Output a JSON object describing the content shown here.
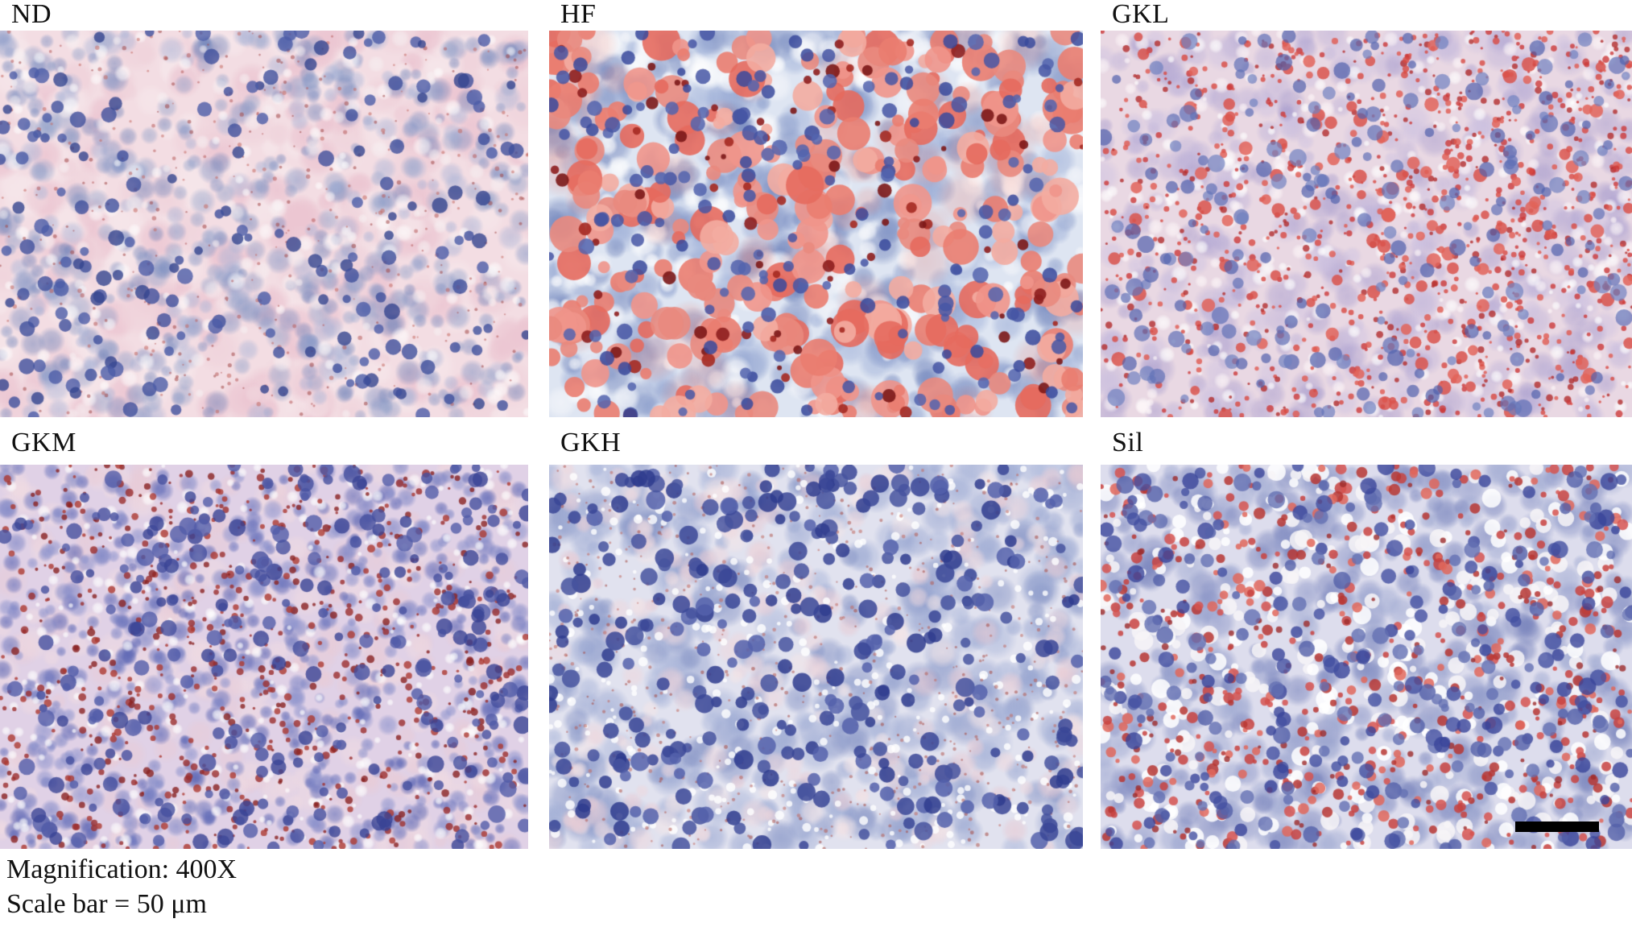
{
  "figure": {
    "caption": {
      "line1": "Magnification: 400X",
      "line2": "Scale bar = 50 μm"
    },
    "scale_bar": {
      "color": "#000000",
      "represents": "50 μm"
    },
    "stain_colors": {
      "lipid_red": "#d04a42",
      "nuclei_blue": "#42519e",
      "matrix_lavender": "#9aa6d0",
      "background_pink": "#eed7df"
    },
    "panels": [
      {
        "id": "nd",
        "label": "ND",
        "texture": {
          "bg": "#f3dde3",
          "layers": [
            {
              "kind": "pink-matrix",
              "colors": [
                "#f0d4dc",
                "#ecc6d2",
                "#f6e6ea"
              ],
              "rmin": 12,
              "rmax": 32,
              "count": 380,
              "alpha": 0.9,
              "soft": true
            },
            {
              "kind": "bluegray-cells",
              "colors": [
                "#8fa0c9",
                "#7b8ec1",
                "#a5b1d6",
                "#6d81b8"
              ],
              "rmin": 7,
              "rmax": 18,
              "count": 520,
              "alpha": 0.5,
              "soft": true
            },
            {
              "kind": "white-gaps",
              "colors": [
                "#ffffff",
                "#f7f1f3"
              ],
              "rmin": 5,
              "rmax": 13,
              "count": 180,
              "alpha": 0.65,
              "soft": true
            },
            {
              "kind": "red-specks",
              "colors": [
                "#b85c5c",
                "#a34848",
                "#c46a62"
              ],
              "rmin": 1,
              "rmax": 2.8,
              "count": 420,
              "alpha": 0.55,
              "soft": false
            },
            {
              "kind": "nuclei",
              "colors": [
                "#40509c",
                "#4c5ca8",
                "#35458f"
              ],
              "rmin": 5,
              "rmax": 10,
              "count": 185,
              "alpha": 0.8,
              "soft": false,
              "xbias": 1.15
            }
          ]
        }
      },
      {
        "id": "hf",
        "label": "HF",
        "texture": {
          "bg": "#dee5f2",
          "layers": [
            {
              "kind": "blue-matrix",
              "colors": [
                "#8b9dcb",
                "#9fb0d8",
                "#7487bd"
              ],
              "rmin": 10,
              "rmax": 28,
              "count": 400,
              "alpha": 0.6,
              "soft": true
            },
            {
              "kind": "white-vacuoles",
              "colors": [
                "#ffffff",
                "#f3f5fa"
              ],
              "rmin": 7,
              "rmax": 22,
              "count": 170,
              "alpha": 0.8,
              "soft": true
            },
            {
              "kind": "red-wash",
              "colors": [
                "#e87f73"
              ],
              "rmin": 18,
              "rmax": 36,
              "count": 60,
              "alpha": 0.25,
              "soft": true
            },
            {
              "kind": "salmon-droplets",
              "colors": [
                "#ef958b",
                "#ea7d70",
                "#f3aca1",
                "#e56a5e",
                "#e98a7e"
              ],
              "rmin": 7,
              "rmax": 24,
              "count": 300,
              "alpha": 0.9,
              "soft": false
            },
            {
              "kind": "dark-red-clumps",
              "colors": [
                "#8e1f1f",
                "#a52a22",
                "#7c1818"
              ],
              "rmin": 3,
              "rmax": 9,
              "count": 90,
              "alpha": 0.9,
              "soft": false
            },
            {
              "kind": "nuclei",
              "colors": [
                "#4656a4",
                "#3a4a9c",
                "#5464ae"
              ],
              "rmin": 5,
              "rmax": 10,
              "count": 170,
              "alpha": 0.85,
              "soft": false
            }
          ]
        }
      },
      {
        "id": "gkl",
        "label": "GKL",
        "texture": {
          "bg": "#e9d8e3",
          "layers": [
            {
              "kind": "lavender-matrix",
              "colors": [
                "#beb3d9",
                "#cdc2e1",
                "#aba0cf"
              ],
              "rmin": 9,
              "rmax": 24,
              "count": 400,
              "alpha": 0.55,
              "soft": true
            },
            {
              "kind": "white-gaps",
              "colors": [
                "#ffffff",
                "#fdf6f8"
              ],
              "rmin": 3,
              "rmax": 11,
              "count": 300,
              "alpha": 0.75,
              "soft": true
            },
            {
              "kind": "red-dots-small",
              "colors": [
                "#cc3a3a",
                "#d84a42",
                "#b32e2e",
                "#e05a50"
              ],
              "rmin": 1.5,
              "rmax": 4.5,
              "count": 950,
              "alpha": 0.8,
              "soft": false,
              "xbias": 0.8
            },
            {
              "kind": "red-droplets-med",
              "colors": [
                "#d9534c",
                "#e2645a"
              ],
              "rmin": 5,
              "rmax": 9,
              "count": 130,
              "alpha": 0.85,
              "soft": false,
              "xbias": 0.8
            },
            {
              "kind": "nuclei",
              "colors": [
                "#6171b7",
                "#5161ad",
                "#7181c1"
              ],
              "rmin": 5,
              "rmax": 11,
              "count": 210,
              "alpha": 0.7,
              "soft": false
            }
          ]
        }
      },
      {
        "id": "gkm",
        "label": "GKM",
        "texture": {
          "bg": "#e0d1e6",
          "layers": [
            {
              "kind": "pink-matrix",
              "colors": [
                "#e9ccd7",
                "#f1dce2"
              ],
              "rmin": 9,
              "rmax": 24,
              "count": 300,
              "alpha": 0.6,
              "soft": true
            },
            {
              "kind": "purple-cells",
              "colors": [
                "#6973bc",
                "#7d85c5",
                "#5a64b3",
                "#8d93cd"
              ],
              "rmin": 6,
              "rmax": 14,
              "count": 600,
              "alpha": 0.65,
              "soft": true
            },
            {
              "kind": "white-gaps",
              "colors": [
                "#ffffff"
              ],
              "rmin": 3,
              "rmax": 9,
              "count": 280,
              "alpha": 0.75,
              "soft": true
            },
            {
              "kind": "dark-red-dots",
              "colors": [
                "#9b2e2e",
                "#892323",
                "#ad3a32"
              ],
              "rmin": 1.5,
              "rmax": 5,
              "count": 680,
              "alpha": 0.8,
              "soft": false
            },
            {
              "kind": "nuclei",
              "colors": [
                "#46509f",
                "#3a4495",
                "#525ca9"
              ],
              "rmin": 5,
              "rmax": 11,
              "count": 270,
              "alpha": 0.8,
              "soft": false
            }
          ]
        }
      },
      {
        "id": "gkh",
        "label": "GKH",
        "texture": {
          "bg": "#e1e2ef",
          "layers": [
            {
              "kind": "blue-matrix",
              "colors": [
                "#98a6d1",
                "#aab6da",
                "#8795c6"
              ],
              "rmin": 10,
              "rmax": 28,
              "count": 400,
              "alpha": 0.6,
              "soft": true
            },
            {
              "kind": "pink-patches",
              "colors": [
                "#eed9df",
                "#f4e6e8",
                "#e8ccd5"
              ],
              "rmin": 8,
              "rmax": 20,
              "count": 230,
              "alpha": 0.65,
              "soft": true
            },
            {
              "kind": "white-specks",
              "colors": [
                "#ffffff"
              ],
              "rmin": 2,
              "rmax": 6,
              "count": 320,
              "alpha": 0.8,
              "soft": false
            },
            {
              "kind": "red-specks",
              "colors": [
                "#b25b54",
                "#a54a44",
                "#c16a60"
              ],
              "rmin": 1,
              "rmax": 2.5,
              "count": 600,
              "alpha": 0.55,
              "soft": false
            },
            {
              "kind": "nuclei",
              "colors": [
                "#47549f",
                "#3a4797",
                "#5562ab",
                "#2f3c8e"
              ],
              "rmin": 6,
              "rmax": 12,
              "count": 310,
              "alpha": 0.85,
              "soft": false
            }
          ]
        }
      },
      {
        "id": "sil",
        "label": "Sil",
        "texture": {
          "bg": "#dddded",
          "layers": [
            {
              "kind": "blue-matrix",
              "colors": [
                "#8d97c8",
                "#a0aad2",
                "#7a85bd"
              ],
              "rmin": 9,
              "rmax": 24,
              "count": 450,
              "alpha": 0.6,
              "soft": true
            },
            {
              "kind": "white-vacuoles",
              "colors": [
                "#ffffff",
                "#f7f5f7"
              ],
              "rmin": 4,
              "rmax": 12,
              "count": 320,
              "alpha": 0.85,
              "soft": false
            },
            {
              "kind": "red-droplets",
              "colors": [
                "#d65450",
                "#c84341",
                "#e0675c",
                "#b73734"
              ],
              "rmin": 2.5,
              "rmax": 7.5,
              "count": 520,
              "alpha": 0.85,
              "soft": false
            },
            {
              "kind": "dark-red-dots",
              "colors": [
                "#9e2c2c"
              ],
              "rmin": 2,
              "rmax": 4.5,
              "count": 90,
              "alpha": 0.8,
              "soft": false
            },
            {
              "kind": "nuclei",
              "colors": [
                "#5460a9",
                "#4450a1",
                "#6470b3",
                "#39459a"
              ],
              "rmin": 5,
              "rmax": 11,
              "count": 290,
              "alpha": 0.8,
              "soft": false
            }
          ]
        }
      }
    ]
  }
}
